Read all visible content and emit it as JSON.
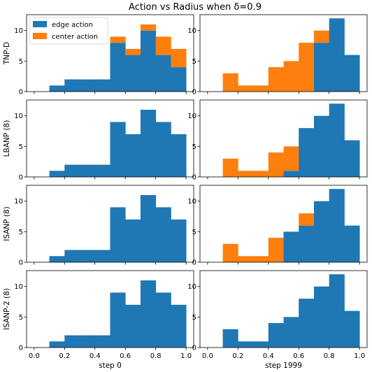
{
  "title": "Action vs Radius when δ=0.9",
  "colors": {
    "edge": "#1f77b4",
    "center": "#ff7f0e"
  },
  "legend": {
    "edge_label": "edge action",
    "center_label": "center action",
    "placement": "upper left of first panel"
  },
  "chart_data": {
    "type": "bar",
    "layout": "4x2 grid of stacked histograms",
    "bin_edges": [
      0.1,
      0.2,
      0.3,
      0.4,
      0.5,
      0.6,
      0.7,
      0.8,
      0.9,
      1.0
    ],
    "xlim": [
      -0.05,
      1.05
    ],
    "ylim": [
      0,
      12.6
    ],
    "xticks": [
      "0.0",
      "0.2",
      "0.4",
      "0.6",
      "0.8",
      "1.0"
    ],
    "yticks": [
      "0",
      "5",
      "10"
    ],
    "col_labels": [
      "step 0",
      "step 1999"
    ],
    "row_labels": [
      "TNP-D",
      "LBANP (8)",
      "ISANP (8)",
      "ISANP-2 (8)"
    ],
    "panels": [
      {
        "row": "TNP-D",
        "col": "step 0",
        "series": [
          {
            "name": "edge action",
            "values": [
              1,
              2,
              2,
              2,
              8,
              6,
              10,
              6,
              4
            ]
          },
          {
            "name": "center action",
            "values": [
              0,
              0,
              0,
              0,
              1,
              1,
              1,
              3,
              3
            ]
          }
        ]
      },
      {
        "row": "TNP-D",
        "col": "step 1999",
        "series": [
          {
            "name": "edge action",
            "values": [
              0,
              0,
              0,
              0,
              0,
              0,
              8,
              12,
              6
            ]
          },
          {
            "name": "center action",
            "values": [
              3,
              1,
              1,
              4,
              5,
              8,
              2,
              0,
              0
            ]
          }
        ]
      },
      {
        "row": "LBANP (8)",
        "col": "step 0",
        "series": [
          {
            "name": "edge action",
            "values": [
              1,
              2,
              2,
              2,
              9,
              7,
              11,
              9,
              7
            ]
          },
          {
            "name": "center action",
            "values": [
              0,
              0,
              0,
              0,
              0,
              0,
              0,
              0,
              0
            ]
          }
        ]
      },
      {
        "row": "LBANP (8)",
        "col": "step 1999",
        "series": [
          {
            "name": "edge action",
            "values": [
              0,
              0,
              0,
              0,
              1,
              8,
              10,
              12,
              6
            ]
          },
          {
            "name": "center action",
            "values": [
              3,
              1,
              1,
              4,
              4,
              0,
              0,
              0,
              0
            ]
          }
        ]
      },
      {
        "row": "ISANP (8)",
        "col": "step 0",
        "series": [
          {
            "name": "edge action",
            "values": [
              1,
              2,
              2,
              2,
              9,
              7,
              11,
              9,
              7
            ]
          },
          {
            "name": "center action",
            "values": [
              0,
              0,
              0,
              0,
              0,
              0,
              0,
              0,
              0
            ]
          }
        ]
      },
      {
        "row": "ISANP (8)",
        "col": "step 1999",
        "series": [
          {
            "name": "edge action",
            "values": [
              0,
              0,
              0,
              0,
              5,
              6,
              10,
              12,
              6
            ]
          },
          {
            "name": "center action",
            "values": [
              3,
              1,
              1,
              4,
              0,
              2,
              0,
              0,
              0
            ]
          }
        ]
      },
      {
        "row": "ISANP-2 (8)",
        "col": "step 0",
        "series": [
          {
            "name": "edge action",
            "values": [
              1,
              2,
              2,
              2,
              9,
              7,
              11,
              9,
              7
            ]
          },
          {
            "name": "center action",
            "values": [
              0,
              0,
              0,
              0,
              0,
              0,
              0,
              0,
              0
            ]
          }
        ]
      },
      {
        "row": "ISANP-2 (8)",
        "col": "step 1999",
        "series": [
          {
            "name": "edge action",
            "values": [
              3,
              1,
              1,
              4,
              5,
              8,
              10,
              12,
              6
            ]
          },
          {
            "name": "center action",
            "values": [
              0,
              0,
              0,
              0,
              0,
              0,
              0,
              0,
              0
            ]
          }
        ]
      }
    ]
  }
}
